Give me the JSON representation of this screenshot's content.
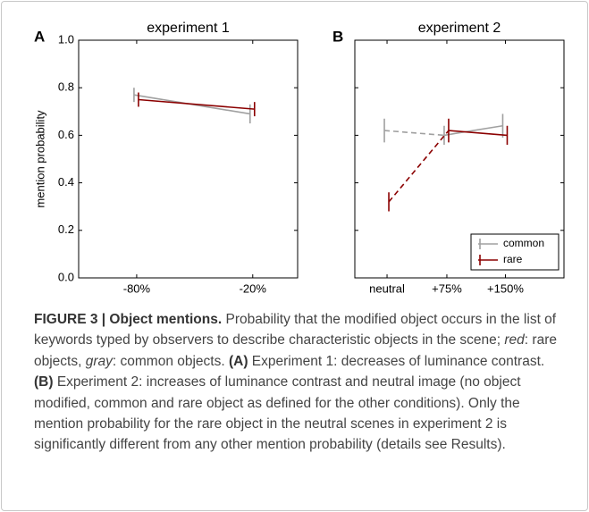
{
  "chart_data": [
    {
      "type": "line",
      "panel_label": "A",
      "title": "experiment 1",
      "ylabel": "mention probability",
      "categories": [
        "-80%",
        "-20%"
      ],
      "ylim": [
        0,
        1
      ],
      "yticks": [
        {
          "value": 0,
          "label": "0.0"
        },
        {
          "value": 0.2,
          "label": "0.2"
        },
        {
          "value": 0.4,
          "label": "0.4"
        },
        {
          "value": 0.6,
          "label": "0.6"
        },
        {
          "value": 0.8,
          "label": "0.8"
        },
        {
          "value": 1,
          "label": "1.0"
        }
      ],
      "ytick_labels": true,
      "series": [
        {
          "name": "common",
          "color": "#a0a0a0",
          "values": [
            0.77,
            0.69
          ],
          "errors": [
            0.03,
            0.04
          ],
          "linestyle": [
            "solid"
          ]
        },
        {
          "name": "rare",
          "color": "#8b0000",
          "values": [
            0.75,
            0.71
          ],
          "errors": [
            0.03,
            0.03
          ],
          "linestyle": [
            "solid"
          ]
        }
      ]
    },
    {
      "type": "line",
      "panel_label": "B",
      "title": "experiment 2",
      "categories": [
        "neutral",
        "+75%",
        "+150%"
      ],
      "ylim": [
        0,
        1
      ],
      "yticks": [
        0,
        0.2,
        0.4,
        0.6,
        0.8,
        1
      ],
      "ytick_labels": false,
      "legend": "lower right",
      "series": [
        {
          "name": "common",
          "color": "#a0a0a0",
          "values": [
            0.62,
            0.6,
            0.64
          ],
          "errors": [
            0.05,
            0.04,
            0.05
          ],
          "linestyle": [
            "dashed",
            "solid"
          ]
        },
        {
          "name": "rare",
          "color": "#8b0000",
          "values": [
            0.32,
            0.62,
            0.6
          ],
          "errors": [
            0.04,
            0.05,
            0.04
          ],
          "linestyle": [
            "dashed",
            "solid"
          ]
        }
      ]
    }
  ],
  "caption": {
    "runs": [
      {
        "text": "FIGURE 3 | Object mentions.",
        "style": "bold"
      },
      {
        "text": " Probability that the modified object occurs in the list of keywords typed by observers to describe characteristic objects in the scene; ",
        "style": "normal"
      },
      {
        "text": "red",
        "style": "italic"
      },
      {
        "text": ": rare objects, ",
        "style": "normal"
      },
      {
        "text": "gray",
        "style": "italic"
      },
      {
        "text": ": common objects. ",
        "style": "normal"
      },
      {
        "text": "(A)",
        "style": "bold"
      },
      {
        "text": " Experiment 1: decreases of luminance contrast. ",
        "style": "normal"
      },
      {
        "text": "(B)",
        "style": "bold"
      },
      {
        "text": " Experiment 2: increases of luminance contrast and neutral image (no object modified, common and rare object as defined for the other conditions). Only the mention probability for the rare object in the neutral scenes in experiment 2 is significantly different from any other mention probability (details see Results).",
        "style": "normal"
      }
    ]
  }
}
